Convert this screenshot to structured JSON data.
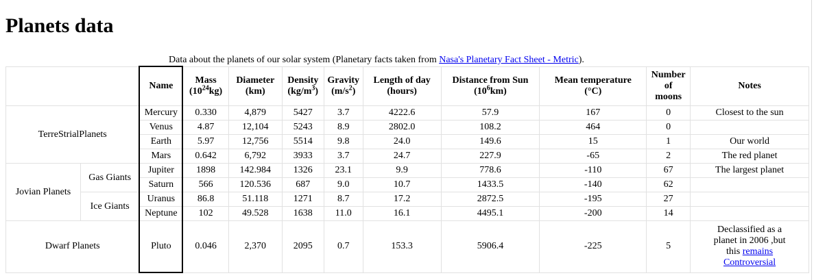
{
  "page": {
    "title": "Planets data",
    "caption_text": "Data about the planets of our solar system (Planetary facts taken from ",
    "caption_link": "Nasa's Planetary Fact Sheet - Metric",
    "caption_end": ")."
  },
  "headers": {
    "name": "Name",
    "mass": "Mass",
    "mass_unit_base": "(10",
    "mass_unit_exp": "24",
    "mass_unit_end": "kg)",
    "diameter": "Diameter",
    "diameter_unit": "(km)",
    "density": "Density",
    "density_unit_base": "(kg/m",
    "density_unit_exp": "3",
    "density_unit_end": ")",
    "gravity": "Gravity",
    "gravity_unit_base": "(m/s",
    "gravity_unit_exp": "2",
    "gravity_unit_end": ")",
    "day": "Length of day",
    "day_unit": "(hours)",
    "distance": "Distance from Sun",
    "distance_unit_base": "(10",
    "distance_unit_exp": "6",
    "distance_unit_end": "km)",
    "temp": "Mean temperature",
    "temp_unit": "(°C)",
    "moons_1": "Number",
    "moons_2": "of",
    "moons_3": "moons",
    "notes": "Notes"
  },
  "groups": {
    "terrestrial": "TerreStrialPlanets",
    "jovian": "Jovian Planets",
    "gas_giants": "Gas Giants",
    "ice_giants": "Ice Giants",
    "dwarf": "Dwarf Planets"
  },
  "planets": [
    {
      "name": "Mercury",
      "mass": "0.330",
      "diameter": "4,879",
      "density": "5427",
      "gravity": "3.7",
      "day": "4222.6",
      "distance": "57.9",
      "temp": "167",
      "moons": "0",
      "note": "Closest to the sun"
    },
    {
      "name": "Venus",
      "mass": "4.87",
      "diameter": "12,104",
      "density": "5243",
      "gravity": "8.9",
      "day": "2802.0",
      "distance": "108.2",
      "temp": "464",
      "moons": "0",
      "note": ""
    },
    {
      "name": "Earth",
      "mass": "5.97",
      "diameter": "12,756",
      "density": "5514",
      "gravity": "9.8",
      "day": "24.0",
      "distance": "149.6",
      "temp": "15",
      "moons": "1",
      "note": "Our world"
    },
    {
      "name": "Mars",
      "mass": "0.642",
      "diameter": "6,792",
      "density": "3933",
      "gravity": "3.7",
      "day": "24.7",
      "distance": "227.9",
      "temp": "-65",
      "moons": "2",
      "note": "The red planet"
    },
    {
      "name": "Jupiter",
      "mass": "1898",
      "diameter": "142.984",
      "density": "1326",
      "gravity": "23.1",
      "day": "9.9",
      "distance": "778.6",
      "temp": "-110",
      "moons": "67",
      "note": "The largest planet"
    },
    {
      "name": "Saturn",
      "mass": "566",
      "diameter": "120.536",
      "density": "687",
      "gravity": "9.0",
      "day": "10.7",
      "distance": "1433.5",
      "temp": "-140",
      "moons": "62",
      "note": ""
    },
    {
      "name": "Uranus",
      "mass": "86.8",
      "diameter": "51.118",
      "density": "1271",
      "gravity": "8.7",
      "day": "17.2",
      "distance": "2872.5",
      "temp": "-195",
      "moons": "27",
      "note": ""
    },
    {
      "name": "Neptune",
      "mass": "102",
      "diameter": "49.528",
      "density": "1638",
      "gravity": "11.0",
      "day": "16.1",
      "distance": "4495.1",
      "temp": "-200",
      "moons": "14",
      "note": ""
    },
    {
      "name": "Pluto",
      "mass": "0.046",
      "diameter": "2,370",
      "density": "2095",
      "gravity": "0.7",
      "day": "153.3",
      "distance": "5906.4",
      "temp": "-225",
      "moons": "5",
      "note": ""
    }
  ],
  "pluto_note": {
    "line1": "Declassified as a",
    "line2": "planet in 2006 ,but",
    "line3": "this ",
    "link1": "remains",
    "link2": "Controversial"
  },
  "colors": {
    "link": "#0000ee",
    "grid": "#e1e1e1",
    "name_column_border": "#000000"
  }
}
